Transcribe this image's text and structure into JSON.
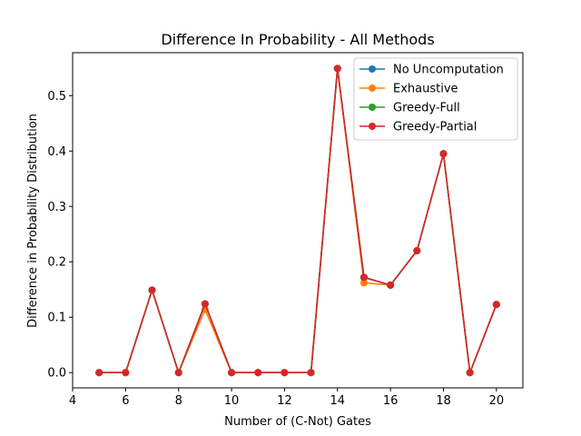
{
  "chart_data": {
    "type": "line",
    "title": "Difference In Probability - All Methods",
    "xlabel": "Number of (C-Not) Gates",
    "ylabel": "Difference in Probability Distribution",
    "xlim": [
      4,
      21
    ],
    "ylim": [
      -0.0275,
      0.5775
    ],
    "xticks": [
      4,
      6,
      8,
      10,
      12,
      14,
      16,
      18,
      20
    ],
    "yticks": [
      0.0,
      0.1,
      0.2,
      0.3,
      0.4,
      0.5
    ],
    "xtick_labels": [
      "4",
      "6",
      "8",
      "10",
      "12",
      "14",
      "16",
      "18",
      "20"
    ],
    "ytick_labels": [
      "0.0",
      "0.1",
      "0.2",
      "0.3",
      "0.4",
      "0.5"
    ],
    "grid": false,
    "legend_position": "top-right",
    "x": [
      5,
      6,
      7,
      8,
      9,
      10,
      11,
      12,
      13,
      14,
      15,
      16,
      17,
      18,
      19,
      20
    ],
    "series": [
      {
        "name": "No Uncomputation",
        "color": "#1f77b4",
        "values": [
          0.0,
          0.0,
          0.149,
          0.0,
          0.124,
          0.0,
          0.0,
          0.0,
          0.0,
          0.549,
          0.172,
          0.158,
          0.22,
          0.395,
          0.0,
          0.123
        ]
      },
      {
        "name": "Exhaustive",
        "color": "#ff7f0e",
        "values": [
          0.0,
          0.0,
          0.149,
          0.0,
          0.114,
          0.0,
          0.0,
          0.0,
          0.0,
          0.549,
          0.162,
          0.158,
          0.22,
          0.395,
          0.0,
          0.123
        ]
      },
      {
        "name": "Greedy-Full",
        "color": "#2ca02c",
        "values": [
          0.0,
          0.0,
          0.149,
          0.0,
          0.124,
          0.0,
          0.0,
          0.0,
          0.0,
          0.549,
          0.172,
          0.158,
          0.22,
          0.395,
          0.0,
          0.123
        ]
      },
      {
        "name": "Greedy-Partial",
        "color": "#d62728",
        "values": [
          0.0,
          0.0,
          0.149,
          0.0,
          0.124,
          0.0,
          0.0,
          0.0,
          0.0,
          0.549,
          0.172,
          0.158,
          0.22,
          0.395,
          0.0,
          0.123
        ]
      }
    ]
  }
}
